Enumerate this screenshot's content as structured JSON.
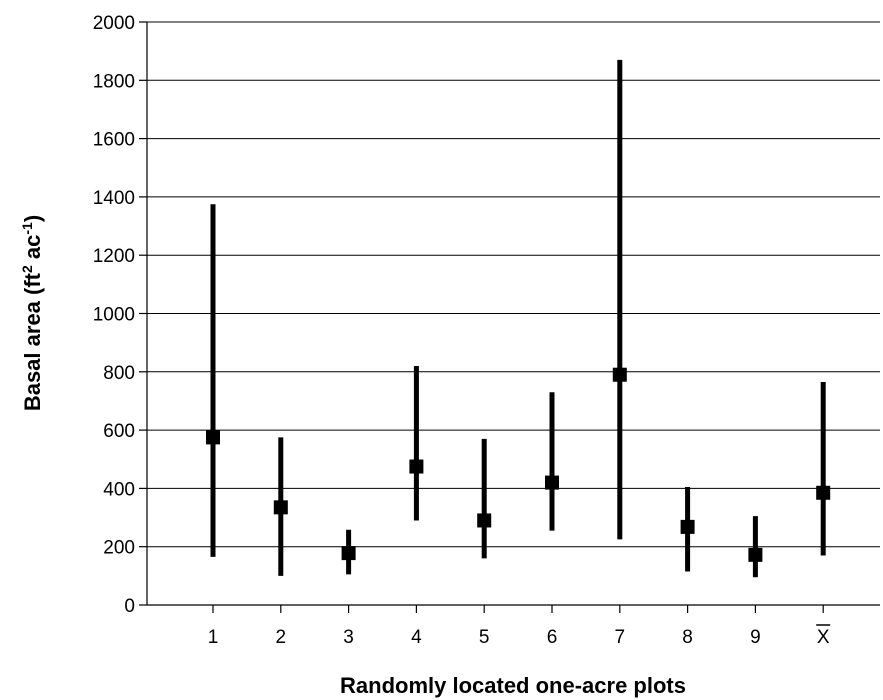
{
  "chart_data": {
    "type": "scatter",
    "variant": "point-with-range",
    "title": "",
    "xlabel": "Randomly located one-acre plots",
    "ylabel": {
      "main": "Basal area (ft",
      "sup1": "2",
      "mid": " ac",
      "sup2": "-1",
      "end": ")"
    },
    "ylim": [
      0,
      2000
    ],
    "yticks": [
      "0",
      "200",
      "400",
      "600",
      "800",
      "1000",
      "1200",
      "1400",
      "1600",
      "1800",
      "2000"
    ],
    "grid": "horizontal",
    "legend": "none",
    "marker_color": "#000000",
    "categories": [
      "1",
      "2",
      "3",
      "4",
      "5",
      "6",
      "7",
      "8",
      "9",
      "X"
    ],
    "overbar_category": "X",
    "points": [
      {
        "label": "1",
        "value": 575,
        "low": 165,
        "high": 1375
      },
      {
        "label": "2",
        "value": 335,
        "low": 100,
        "high": 575
      },
      {
        "label": "3",
        "value": 178,
        "low": 105,
        "high": 258
      },
      {
        "label": "4",
        "value": 475,
        "low": 290,
        "high": 820
      },
      {
        "label": "5",
        "value": 290,
        "low": 160,
        "high": 570
      },
      {
        "label": "6",
        "value": 420,
        "low": 255,
        "high": 730
      },
      {
        "label": "7",
        "value": 790,
        "low": 225,
        "high": 1870
      },
      {
        "label": "8",
        "value": 268,
        "low": 115,
        "high": 405
      },
      {
        "label": "9",
        "value": 172,
        "low": 95,
        "high": 305
      },
      {
        "label": "X",
        "value": 385,
        "low": 170,
        "high": 765
      }
    ]
  }
}
